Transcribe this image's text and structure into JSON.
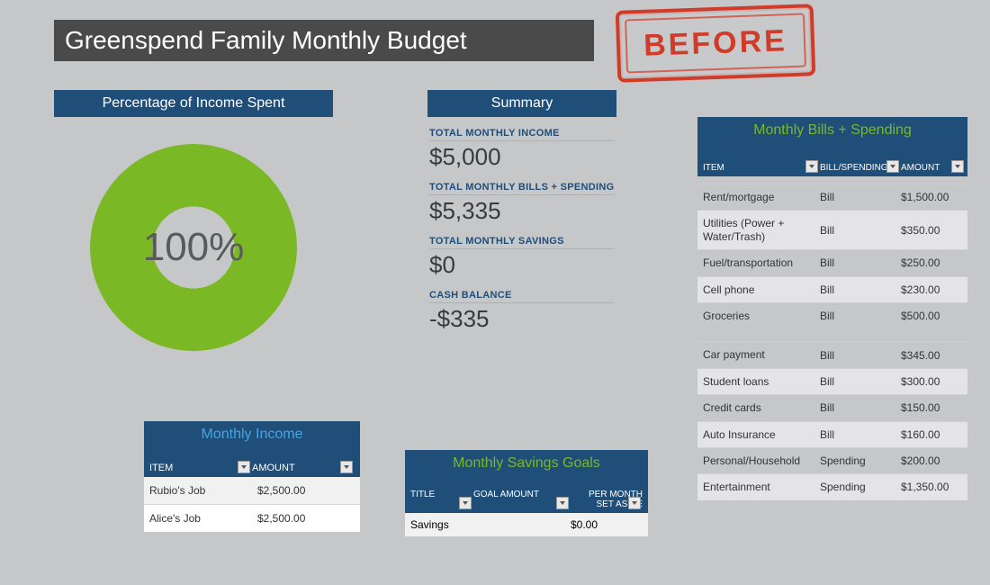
{
  "title": "Greenspend Family Monthly Budget",
  "stamp": {
    "text": "BEFORE",
    "color": "#d13b2a"
  },
  "colors": {
    "header_bg": "#4a4a4a",
    "section_bg": "#1f4e79",
    "accent_green": "#7ab826",
    "accent_blue": "#4aa3df",
    "page_bg": "#c6c7c9",
    "text_dark": "#3a3a3a"
  },
  "percentage_chart": {
    "title": "Percentage of Income Spent",
    "type": "donut",
    "value_pct": 100,
    "center_label": "100%",
    "ring_color": "#7ab826",
    "ring_thickness_pct": 22,
    "background_color": "#c6c7c9",
    "center_fontsize": 44
  },
  "summary": {
    "title": "Summary",
    "items": [
      {
        "label": "TOTAL MONTHLY INCOME",
        "value": "$5,000"
      },
      {
        "label": "TOTAL MONTHLY BILLS + SPENDING",
        "value": "$5,335"
      },
      {
        "label": "TOTAL MONTHLY SAVINGS",
        "value": "$0"
      },
      {
        "label": "CASH BALANCE",
        "value": "-$335"
      }
    ]
  },
  "income": {
    "title": "Monthly Income",
    "columns": [
      "ITEM",
      "AMOUNT"
    ],
    "rows": [
      {
        "item": "Rubio's Job",
        "amount": "$2,500.00"
      },
      {
        "item": "Alice's Job",
        "amount": "$2,500.00"
      }
    ]
  },
  "savings": {
    "title": "Monthly Savings Goals",
    "columns": [
      "TITLE",
      "GOAL AMOUNT",
      "PER MONTH SET ASIDE"
    ],
    "rows": [
      {
        "title": "Savings",
        "goal": "",
        "per_month": "$0.00"
      }
    ]
  },
  "bills": {
    "title": "Monthly Bills + Spending",
    "columns": [
      "ITEM",
      "BILL/SPENDING",
      "AMOUNT"
    ],
    "group1": [
      {
        "item": "Rent/mortgage",
        "type": "Bill",
        "amount": "$1,500.00"
      },
      {
        "item": "Utilities (Power + Water/Trash)",
        "type": "Bill",
        "amount": "$350.00"
      },
      {
        "item": "Fuel/transportation",
        "type": "Bill",
        "amount": "$250.00"
      },
      {
        "item": "Cell phone",
        "type": "Bill",
        "amount": "$230.00"
      },
      {
        "item": "Groceries",
        "type": "Bill",
        "amount": "$500.00"
      }
    ],
    "group2": [
      {
        "item": "Car payment",
        "type": "Bill",
        "amount": "$345.00"
      },
      {
        "item": "Student loans",
        "type": "Bill",
        "amount": "$300.00"
      },
      {
        "item": "Credit cards",
        "type": "Bill",
        "amount": "$150.00"
      },
      {
        "item": "Auto Insurance",
        "type": "Bill",
        "amount": "$160.00"
      },
      {
        "item": "Personal/Household",
        "type": "Spending",
        "amount": "$200.00"
      },
      {
        "item": "Entertainment",
        "type": "Spending",
        "amount": "$1,350.00"
      }
    ]
  }
}
